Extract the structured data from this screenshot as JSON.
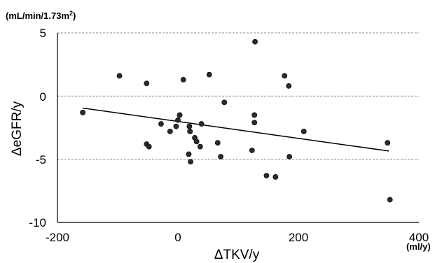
{
  "chart_data": {
    "type": "scatter",
    "title": "",
    "xlabel": "ΔTKV/y",
    "ylabel": "ΔeGFR/y",
    "x_unit": "(ml/y)",
    "y_unit_html_parts": [
      "(mL/min/1.73m",
      "2",
      ")"
    ],
    "xlim": [
      -200,
      400
    ],
    "ylim": [
      -10,
      5
    ],
    "x_ticks": [
      "-200",
      "0",
      "200",
      "400"
    ],
    "y_ticks": [
      "5",
      "0",
      "-5",
      "-10"
    ],
    "grid": "horizontal dashed",
    "points": [
      {
        "x": -158,
        "y": -1.3
      },
      {
        "x": -97,
        "y": 1.6
      },
      {
        "x": -52,
        "y": 1.0
      },
      {
        "x": -52,
        "y": -3.8
      },
      {
        "x": -48,
        "y": -4.0
      },
      {
        "x": -28,
        "y": -2.2
      },
      {
        "x": -13,
        "y": -2.8
      },
      {
        "x": -3,
        "y": -2.4
      },
      {
        "x": 0,
        "y": -1.9
      },
      {
        "x": 3,
        "y": -1.5
      },
      {
        "x": 9,
        "y": 1.3
      },
      {
        "x": 18,
        "y": -4.6
      },
      {
        "x": 19,
        "y": -2.4
      },
      {
        "x": 20,
        "y": -2.8
      },
      {
        "x": 21,
        "y": -5.2
      },
      {
        "x": 28,
        "y": -3.3
      },
      {
        "x": 31,
        "y": -3.6
      },
      {
        "x": 37,
        "y": -4.0
      },
      {
        "x": 39,
        "y": -2.2
      },
      {
        "x": 52,
        "y": 1.7
      },
      {
        "x": 66,
        "y": -3.7
      },
      {
        "x": 71,
        "y": -4.8
      },
      {
        "x": 77,
        "y": -0.5
      },
      {
        "x": 123,
        "y": -4.3
      },
      {
        "x": 127,
        "y": -2.1
      },
      {
        "x": 127,
        "y": -1.5
      },
      {
        "x": 128,
        "y": 4.3
      },
      {
        "x": 147,
        "y": -6.3
      },
      {
        "x": 162,
        "y": -6.4
      },
      {
        "x": 177,
        "y": 1.6
      },
      {
        "x": 184,
        "y": 0.8
      },
      {
        "x": 185,
        "y": -4.8
      },
      {
        "x": 209,
        "y": -2.8
      },
      {
        "x": 348,
        "y": -3.7
      },
      {
        "x": 352,
        "y": -8.2
      }
    ],
    "trendline": {
      "x": [
        -158,
        350
      ],
      "y": [
        -0.95,
        -4.35
      ]
    },
    "marker_color": "#2b2b2b",
    "line_color": "#000000",
    "grid_color": "#8c8c8c"
  }
}
